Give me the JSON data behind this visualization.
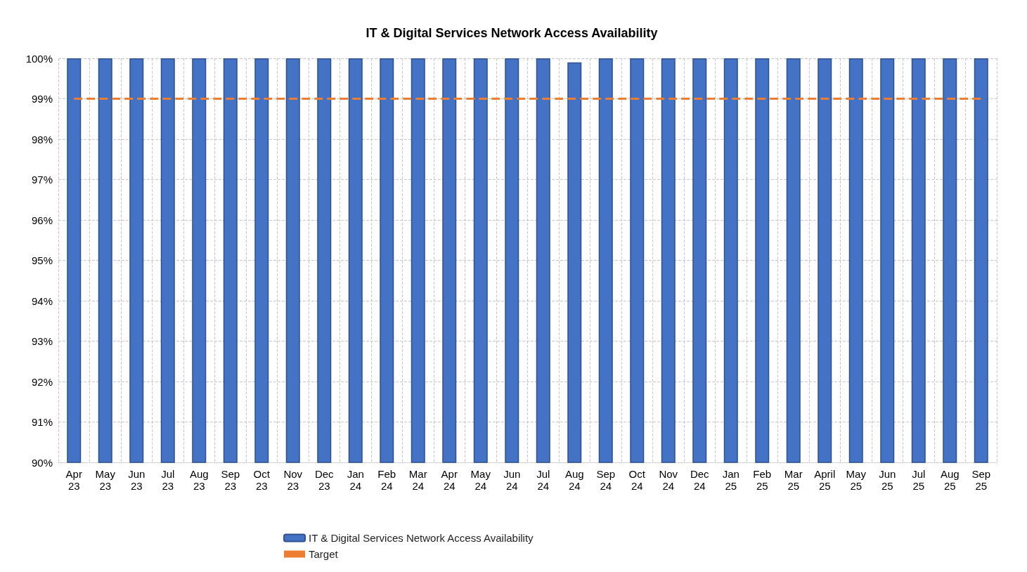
{
  "chart_data": {
    "type": "bar",
    "title": "IT & Digital Services Network Access Availability",
    "categories": [
      "Apr 23",
      "May 23",
      "Jun 23",
      "Jul 23",
      "Aug 23",
      "Sep 23",
      "Oct 23",
      "Nov 23",
      "Dec 23",
      "Jan 24",
      "Feb 24",
      "Mar 24",
      "Apr 24",
      "May 24",
      "Jun 24",
      "Jul 24",
      "Aug 24",
      "Sep 24",
      "Oct 24",
      "Nov 24",
      "Dec 24",
      "Jan 25",
      "Feb 25",
      "Mar 25",
      "April 25",
      "May 25",
      "Jun 25",
      "Jul 25",
      "Aug 25",
      "Sep 25"
    ],
    "series": [
      {
        "name": "IT & Digital Services Network Access Availability",
        "color": "#4472c4",
        "values": [
          100,
          100,
          100,
          100,
          100,
          100,
          100,
          100,
          100,
          100,
          100,
          100,
          100,
          100,
          100,
          100,
          99.9,
          100,
          100,
          100,
          100,
          100,
          100,
          100,
          100,
          100,
          100,
          100,
          100,
          100
        ]
      },
      {
        "name": "Target",
        "type": "line",
        "color": "#ed7d31",
        "line_style": "dashed",
        "marker": "none",
        "values": [
          99,
          99,
          99,
          99,
          99,
          99,
          99,
          99,
          99,
          99,
          99,
          99,
          99,
          99,
          99,
          99,
          99,
          99,
          99,
          99,
          99,
          99,
          99,
          99,
          99,
          99,
          99,
          99,
          99,
          99
        ]
      }
    ],
    "ylim": [
      90,
      100
    ],
    "yticks": [
      {
        "value": 90,
        "label": "90%"
      },
      {
        "value": 91,
        "label": "91%"
      },
      {
        "value": 92,
        "label": "92%"
      },
      {
        "value": 93,
        "label": "93%"
      },
      {
        "value": 94,
        "label": "94%"
      },
      {
        "value": 95,
        "label": "95%"
      },
      {
        "value": 96,
        "label": "96%"
      },
      {
        "value": 97,
        "label": "97%"
      },
      {
        "value": 98,
        "label": "98%"
      },
      {
        "value": 99,
        "label": "99%"
      },
      {
        "value": 100,
        "label": "100%"
      }
    ],
    "grid": true,
    "legend": "bottom"
  }
}
